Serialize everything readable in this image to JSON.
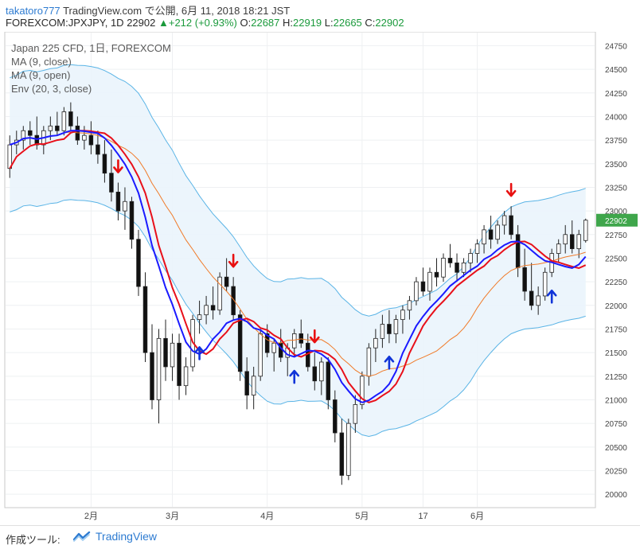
{
  "header": {
    "user": "takatoro777",
    "published": "TradingView.com で公開, 6月 11, 2018 18:21 JST",
    "symbol": "FOREXCOM:JPXJPY, 1D",
    "last": "22902",
    "change": "+212 (+0.93%)",
    "o_label": "O:",
    "o": "22687",
    "h_label": "H:",
    "h": "22919",
    "l_label": "L:",
    "l": "22665",
    "c_label": "C:",
    "c": "22902"
  },
  "legend": {
    "line1": "Japan 225 CFD, 1日, FOREXCOM",
    "line2": "MA (9, close)",
    "line3": "MA (9, open)",
    "line4": "Env (20, 3, close)"
  },
  "footer": {
    "tool_label": "作成ツール:",
    "brand": "TradingView"
  },
  "colors": {
    "ma_close": "#1a1aff",
    "ma_open": "#e8101a",
    "env_basis": "#f07a28",
    "env_band": "#5ab4e6",
    "up_arrow": "#1034d8",
    "down_arrow": "#e81010"
  },
  "chart_data": {
    "type": "candlestick",
    "y_ticks": [
      20000,
      20250,
      20500,
      20750,
      21000,
      21250,
      21500,
      21750,
      22000,
      22250,
      22500,
      22750,
      23000,
      23250,
      23500,
      23750,
      24000,
      24250,
      24500,
      24750
    ],
    "ylim": [
      19875,
      24880
    ],
    "x_ticks": [
      "2月",
      "3月",
      "4月",
      "5月",
      "17",
      "6月"
    ],
    "current_price": 22902,
    "candles": [
      [
        23450,
        23800,
        23350,
        23700
      ],
      [
        23700,
        23850,
        23600,
        23750
      ],
      [
        23750,
        23900,
        23650,
        23850
      ],
      [
        23850,
        23950,
        23700,
        23800
      ],
      [
        23800,
        24000,
        23650,
        23700
      ],
      [
        23700,
        23900,
        23600,
        23850
      ],
      [
        23850,
        24000,
        23750,
        23900
      ],
      [
        23900,
        24050,
        23800,
        23850
      ],
      [
        23850,
        24100,
        23800,
        24050
      ],
      [
        24050,
        24150,
        23850,
        23900
      ],
      [
        23900,
        24000,
        23700,
        23750
      ],
      [
        23750,
        23900,
        23650,
        23800
      ],
      [
        23800,
        23950,
        23600,
        23700
      ],
      [
        23700,
        23850,
        23500,
        23600
      ],
      [
        23600,
        23750,
        23300,
        23400
      ],
      [
        23400,
        23650,
        23100,
        23200
      ],
      [
        23200,
        23300,
        22900,
        23000
      ],
      [
        23000,
        23250,
        22800,
        23100
      ],
      [
        23100,
        23150,
        22600,
        22700
      ],
      [
        22700,
        22800,
        22100,
        22200
      ],
      [
        22200,
        22350,
        21400,
        21500
      ],
      [
        21500,
        21800,
        20900,
        21000
      ],
      [
        21000,
        21750,
        20750,
        21650
      ],
      [
        21650,
        21850,
        21200,
        21350
      ],
      [
        21350,
        21700,
        21200,
        21600
      ],
      [
        21600,
        21700,
        21000,
        21150
      ],
      [
        21150,
        21450,
        21050,
        21350
      ],
      [
        21350,
        21900,
        21300,
        21850
      ],
      [
        21850,
        22050,
        21700,
        21900
      ],
      [
        21900,
        22100,
        21800,
        22000
      ],
      [
        22000,
        22200,
        21850,
        21950
      ],
      [
        21950,
        22350,
        21900,
        22300
      ],
      [
        22300,
        22500,
        22150,
        22200
      ],
      [
        22200,
        22300,
        21850,
        21900
      ],
      [
        21900,
        21950,
        21200,
        21300
      ],
      [
        21300,
        21450,
        20900,
        21050
      ],
      [
        21050,
        21350,
        20900,
        21250
      ],
      [
        21250,
        21750,
        21200,
        21700
      ],
      [
        21700,
        21800,
        21450,
        21500
      ],
      [
        21500,
        21650,
        21300,
        21600
      ],
      [
        21600,
        21750,
        21400,
        21450
      ],
      [
        21450,
        21600,
        21250,
        21550
      ],
      [
        21550,
        21750,
        21450,
        21700
      ],
      [
        21700,
        21850,
        21550,
        21600
      ],
      [
        21600,
        21700,
        21300,
        21350
      ],
      [
        21350,
        21500,
        21100,
        21200
      ],
      [
        21200,
        21450,
        21050,
        21400
      ],
      [
        21400,
        21450,
        20900,
        21000
      ],
      [
        21000,
        21100,
        20550,
        20650
      ],
      [
        20650,
        20800,
        20100,
        20200
      ],
      [
        20200,
        20800,
        20150,
        20750
      ],
      [
        20750,
        21050,
        20650,
        20950
      ],
      [
        20950,
        21300,
        20900,
        21250
      ],
      [
        21250,
        21600,
        21150,
        21550
      ],
      [
        21550,
        21750,
        21400,
        21650
      ],
      [
        21650,
        21900,
        21550,
        21800
      ],
      [
        21800,
        21950,
        21600,
        21700
      ],
      [
        21700,
        21900,
        21600,
        21850
      ],
      [
        21850,
        22000,
        21700,
        21950
      ],
      [
        21950,
        22100,
        21850,
        22050
      ],
      [
        22050,
        22300,
        22000,
        22250
      ],
      [
        22250,
        22400,
        22100,
        22150
      ],
      [
        22150,
        22400,
        22050,
        22350
      ],
      [
        22350,
        22500,
        22200,
        22300
      ],
      [
        22300,
        22550,
        22250,
        22500
      ],
      [
        22500,
        22650,
        22400,
        22450
      ],
      [
        22450,
        22550,
        22250,
        22350
      ],
      [
        22350,
        22500,
        22300,
        22450
      ],
      [
        22450,
        22600,
        22350,
        22550
      ],
      [
        22550,
        22700,
        22450,
        22650
      ],
      [
        22650,
        22850,
        22550,
        22800
      ],
      [
        22800,
        22950,
        22600,
        22700
      ],
      [
        22700,
        22900,
        22650,
        22850
      ],
      [
        22850,
        23000,
        22750,
        22950
      ],
      [
        22950,
        23050,
        22700,
        22750
      ],
      [
        22750,
        22850,
        22300,
        22400
      ],
      [
        22400,
        22600,
        22050,
        22150
      ],
      [
        22150,
        22450,
        21950,
        22000
      ],
      [
        22000,
        22200,
        21900,
        22100
      ],
      [
        22100,
        22400,
        22050,
        22350
      ],
      [
        22350,
        22600,
        22300,
        22550
      ],
      [
        22550,
        22700,
        22450,
        22650
      ],
      [
        22650,
        22850,
        22550,
        22750
      ],
      [
        22750,
        22900,
        22550,
        22600
      ],
      [
        22600,
        22800,
        22500,
        22750
      ],
      [
        22687,
        22919,
        22665,
        22902
      ]
    ],
    "signals": [
      {
        "type": "down",
        "index": 16
      },
      {
        "type": "up",
        "index": 28
      },
      {
        "type": "down",
        "index": 33
      },
      {
        "type": "up",
        "index": 42
      },
      {
        "type": "down",
        "index": 45
      },
      {
        "type": "up",
        "index": 56
      },
      {
        "type": "down",
        "index": 74
      },
      {
        "type": "up",
        "index": 80
      }
    ]
  }
}
